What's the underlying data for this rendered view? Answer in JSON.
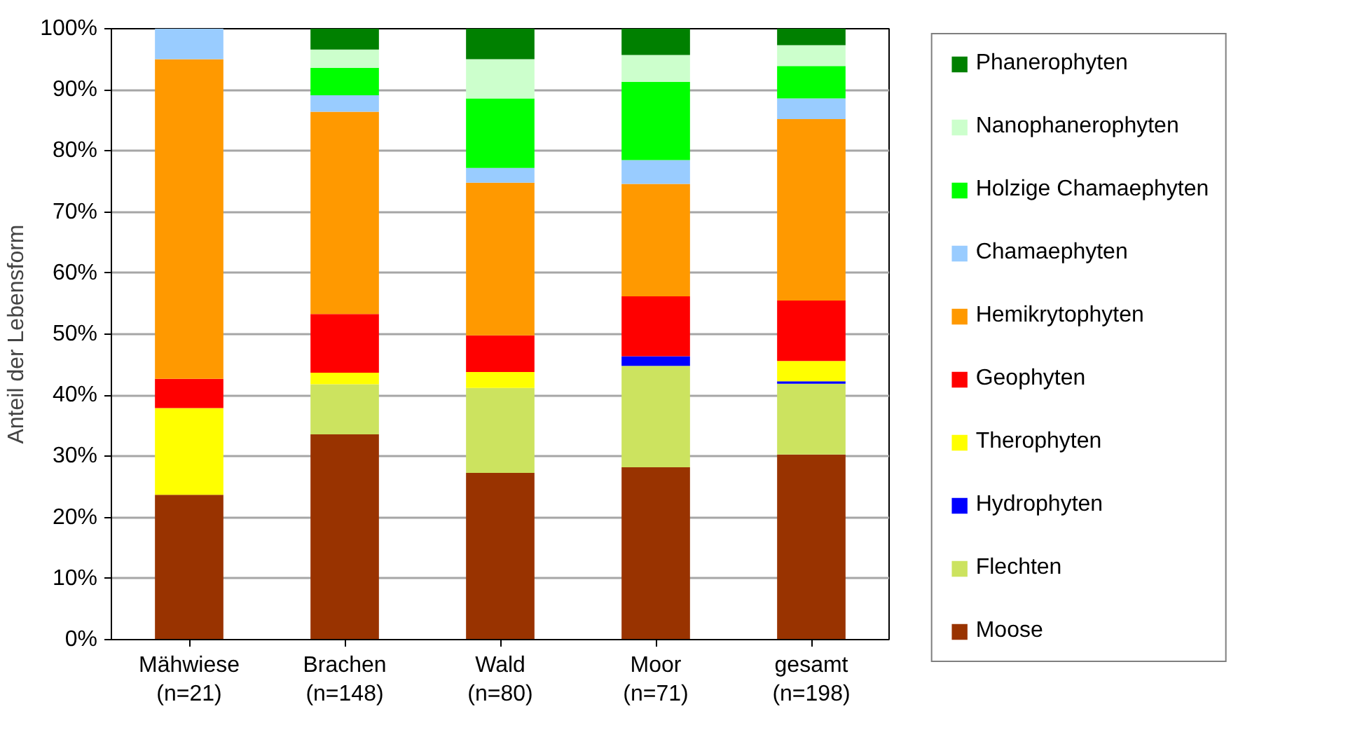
{
  "chart_data": {
    "type": "bar",
    "stacked": true,
    "ylabel": "Anteil der Lebensform",
    "categories": [
      "Mähwiese\n(n=21)",
      "Brachen\n(n=148)",
      "Wald\n(n=80)",
      "Moor\n(n=71)",
      "gesamt\n(n=198)"
    ],
    "series": [
      {
        "name": "Moose",
        "color": "#993300",
        "values": [
          23.7,
          33.6,
          27.3,
          28.2,
          30.3
        ]
      },
      {
        "name": "Flechten",
        "color": "#cce35f",
        "values": [
          0,
          8.2,
          13.9,
          16.6,
          11.6
        ]
      },
      {
        "name": "Hydrophyten",
        "color": "#0000ff",
        "values": [
          0,
          0,
          0,
          1.6,
          0.4
        ]
      },
      {
        "name": "Therophyten",
        "color": "#ffff00",
        "values": [
          14.2,
          1.9,
          2.6,
          0,
          3.3
        ]
      },
      {
        "name": "Geophyten",
        "color": "#ff0000",
        "values": [
          4.8,
          9.6,
          6.0,
          9.8,
          9.9
        ]
      },
      {
        "name": "Hemikrytophyten",
        "color": "#ff9900",
        "values": [
          52.3,
          33.1,
          25.0,
          18.4,
          29.7
        ]
      },
      {
        "name": "Chamaephyten",
        "color": "#99ccff",
        "values": [
          5.0,
          2.7,
          2.4,
          3.9,
          3.4
        ]
      },
      {
        "name": "Holzige Chamaephyten",
        "color": "#00ff00",
        "values": [
          0,
          4.5,
          11.4,
          12.8,
          5.3
        ]
      },
      {
        "name": "Nanophanerophyten",
        "color": "#ccffcc",
        "values": [
          0,
          3.0,
          6.4,
          4.4,
          3.4
        ]
      },
      {
        "name": "Phanerophyten",
        "color": "#008000",
        "values": [
          0,
          3.4,
          5.0,
          4.3,
          2.7
        ]
      }
    ],
    "ylim": [
      0,
      100
    ],
    "yticks": [
      {
        "value": 0,
        "label": "0%"
      },
      {
        "value": 10,
        "label": "10%"
      },
      {
        "value": 20,
        "label": "20%"
      },
      {
        "value": 30,
        "label": "30%"
      },
      {
        "value": 40,
        "label": "40%"
      },
      {
        "value": 50,
        "label": "50%"
      },
      {
        "value": 60,
        "label": "60%"
      },
      {
        "value": 70,
        "label": "70%"
      },
      {
        "value": 80,
        "label": "80%"
      },
      {
        "value": 90,
        "label": "90%"
      },
      {
        "value": 100,
        "label": "100%"
      }
    ],
    "grid": "y",
    "legend": "right"
  }
}
